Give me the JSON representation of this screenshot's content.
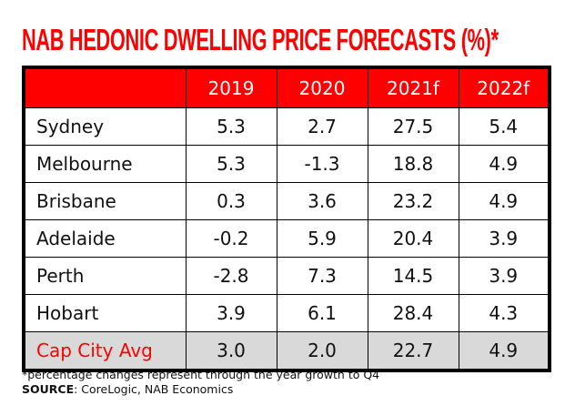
{
  "title": "NAB HEDONIC DWELLING PRICE FORECASTS (%)*",
  "table": {
    "headers": [
      "",
      "2019",
      "2020",
      "2021f",
      "2022f"
    ],
    "rows": [
      {
        "city": "Sydney",
        "values": [
          "5.3",
          "2.7",
          "27.5",
          "5.4"
        ]
      },
      {
        "city": "Melbourne",
        "values": [
          "5.3",
          "-1.3",
          "18.8",
          "4.9"
        ]
      },
      {
        "city": "Brisbane",
        "values": [
          "0.3",
          "3.6",
          "23.2",
          "4.9"
        ]
      },
      {
        "city": "Adelaide",
        "values": [
          "-0.2",
          "5.9",
          "20.4",
          "3.9"
        ]
      },
      {
        "city": "Perth",
        "values": [
          "-2.8",
          "7.3",
          "14.5",
          "3.9"
        ]
      },
      {
        "city": "Hobart",
        "values": [
          "3.9",
          "6.1",
          "28.4",
          "4.3"
        ]
      }
    ],
    "average": {
      "city": "Cap City Avg",
      "values": [
        "3.0",
        "2.0",
        "22.7",
        "4.9"
      ]
    }
  },
  "footnote": "*percentage changes represent through the year growth to Q4",
  "source_label": "SOURCE",
  "source_text": ": CoreLogic, NAB Economics",
  "colors": {
    "accent": "#ff0000",
    "avg_row_bg": "#d9d9d9"
  }
}
